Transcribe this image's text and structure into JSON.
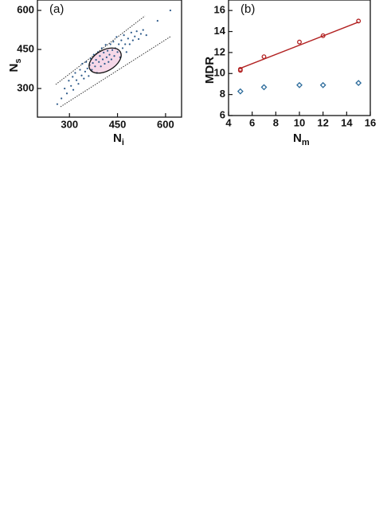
{
  "chart_data": [
    {
      "type": "scatter",
      "label": "(a)",
      "xlabel": "N",
      "xlabel_sub": "i",
      "ylabel": "N",
      "ylabel_sub": "s",
      "xlim": [
        200,
        650
      ],
      "ylim": [
        190,
        640
      ],
      "xticks": [
        300,
        450,
        600
      ],
      "yticks": [
        300,
        450,
        600
      ],
      "color": "#2d5a8a",
      "x": [
        262,
        275,
        285,
        292,
        298,
        305,
        310,
        312,
        318,
        322,
        328,
        333,
        338,
        340,
        345,
        349,
        352,
        356,
        360,
        363,
        366,
        370,
        373,
        376,
        380,
        383,
        386,
        389,
        392,
        395,
        398,
        401,
        404,
        407,
        410,
        413,
        416,
        419,
        422,
        425,
        428,
        431,
        434,
        437,
        440,
        443,
        447,
        450,
        454,
        458,
        462,
        466,
        470,
        474,
        478,
        483,
        488,
        493,
        498,
        504,
        510,
        516,
        523,
        530,
        540,
        575,
        615
      ],
      "values": [
        240,
        262,
        300,
        281,
        330,
        310,
        345,
        295,
        360,
        332,
        318,
        372,
        350,
        395,
        338,
        365,
        402,
        377,
        348,
        390,
        415,
        372,
        398,
        430,
        385,
        410,
        360,
        440,
        402,
        425,
        385,
        455,
        412,
        438,
        395,
        468,
        420,
        445,
        402,
        430,
        470,
        412,
        448,
        480,
        425,
        455,
        498,
        440,
        470,
        420,
        485,
        455,
        505,
        470,
        440,
        492,
        470,
        515,
        485,
        500,
        520,
        490,
        510,
        525,
        505,
        560,
        600
      ]
    },
    {
      "type": "scatter",
      "label": "(b)",
      "xlabel": "N",
      "xlabel_sub": "m",
      "ylabel": "MDR",
      "xlim": [
        4,
        16
      ],
      "ylim": [
        6,
        17
      ],
      "xticks": [
        4,
        6,
        8,
        10,
        12,
        14,
        16
      ],
      "yticks": [
        6,
        8,
        10,
        12,
        14,
        16
      ],
      "series": [
        {
          "color": "#b22222",
          "marker": "circle",
          "x": [
            5,
            5,
            7,
            10,
            12,
            15
          ],
          "values": [
            10.4,
            10.3,
            11.6,
            13.0,
            13.6,
            15.0
          ]
        },
        {
          "color": "#b22222",
          "marker": "line",
          "x": [
            5,
            15
          ],
          "values": [
            10.5,
            14.9
          ]
        },
        {
          "color": "#2a6a9a",
          "marker": "diamond",
          "x": [
            5,
            7,
            10,
            12,
            15
          ],
          "values": [
            8.3,
            8.7,
            8.9,
            8.9,
            9.1
          ]
        }
      ]
    }
  ]
}
